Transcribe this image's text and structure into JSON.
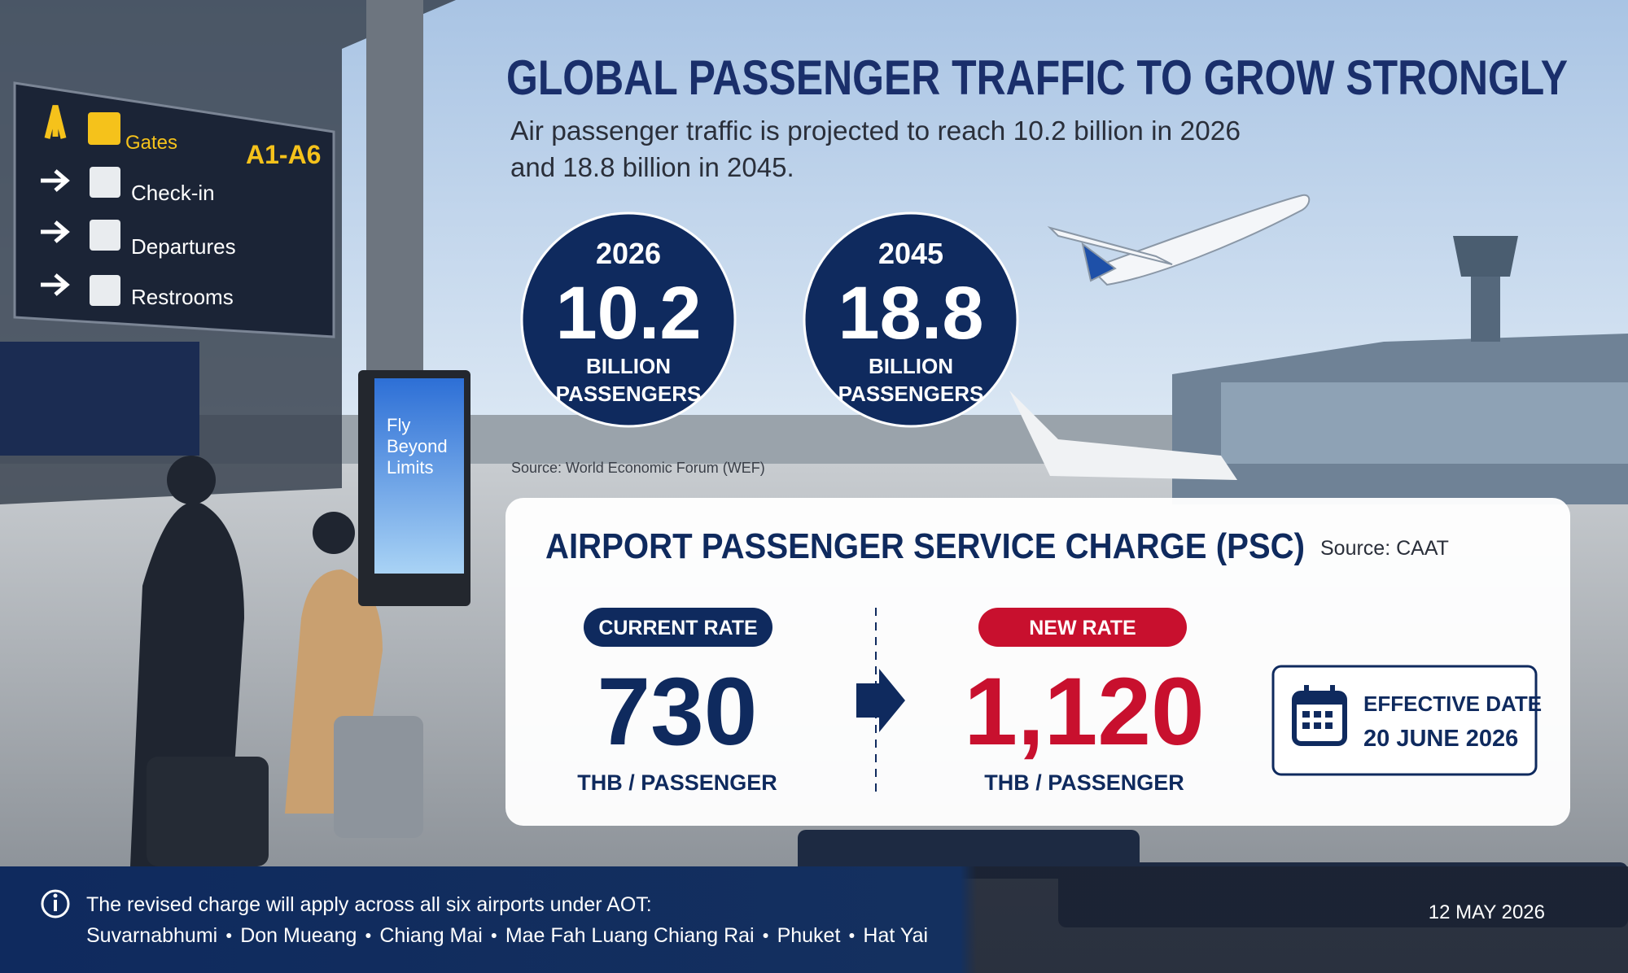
{
  "header": {
    "title": "GLOBAL PASSENGER TRAFFIC TO GROW STRONGLY",
    "subtitle": [
      "Air passenger traffic is projected to reach 10.2 billion in 2026",
      "and 18.8 billion in 2045."
    ]
  },
  "stats": [
    {
      "year": "2026",
      "value": "10.2",
      "unit": [
        "BILLION",
        "PASSENGERS"
      ]
    },
    {
      "year": "2045",
      "value": "18.8",
      "unit": [
        "BILLION",
        "PASSENGERS"
      ]
    }
  ],
  "stats_source": "Source: World Economic Forum (WEF)",
  "psc": {
    "title": "AIRPORT PASSENGER SERVICE CHARGE (PSC)",
    "source": "Source: CAAT",
    "current": {
      "label": "CURRENT RATE",
      "value": "730",
      "unit": "THB / PASSENGER"
    },
    "new": {
      "label": "NEW RATE",
      "value": "1,120",
      "unit": "THB / PASSENGER"
    },
    "effective": {
      "label": "EFFECTIVE DATE",
      "date": "20 JUNE 2026"
    }
  },
  "footer": {
    "note": "The revised charge will apply across all six airports under AOT:",
    "airports": [
      "Suvarnabhumi",
      "Don Mueang",
      "Chiang Mai",
      "Mae Fah Luang Chiang Rai",
      "Phuket",
      "Hat Yai"
    ],
    "date": "12 MAY 2026"
  },
  "signage": {
    "gates": "Gates",
    "gates_range": "A1-A6",
    "items": [
      "Check-in",
      "Departures",
      "Restrooms"
    ]
  },
  "ad": [
    "Fly",
    "Beyond",
    "Limits"
  ]
}
